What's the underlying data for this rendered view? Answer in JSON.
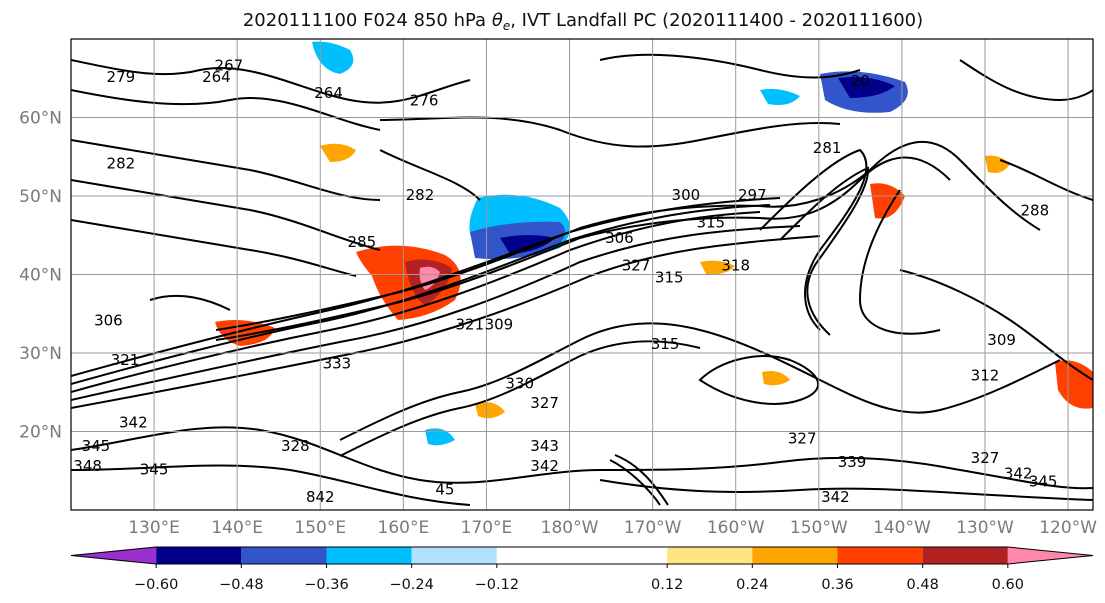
{
  "title_parts": {
    "prefix": "2020111100 F024 850 hPa ",
    "theta": "θ",
    "sub": "e",
    "suffix": ", IVT Landfall PC (2020111400 - 2020111600)"
  },
  "map": {
    "lon_range": [
      120,
      243
    ],
    "lat_range": [
      10,
      70
    ],
    "lat_ticks": [
      {
        "value": 20,
        "label": "20°N"
      },
      {
        "value": 30,
        "label": "30°N"
      },
      {
        "value": 40,
        "label": "40°N"
      },
      {
        "value": 50,
        "label": "50°N"
      },
      {
        "value": 60,
        "label": "60°N"
      }
    ],
    "lon_ticks": [
      {
        "value": 130,
        "label": "130°E"
      },
      {
        "value": 140,
        "label": "140°E"
      },
      {
        "value": 150,
        "label": "150°E"
      },
      {
        "value": 160,
        "label": "160°E"
      },
      {
        "value": 170,
        "label": "170°E"
      },
      {
        "value": 180,
        "label": "180°W"
      },
      {
        "value": 190,
        "label": "170°W"
      },
      {
        "value": 200,
        "label": "160°W"
      },
      {
        "value": 210,
        "label": "150°W"
      },
      {
        "value": 220,
        "label": "140°W"
      },
      {
        "value": 230,
        "label": "130°W"
      },
      {
        "value": 240,
        "label": "120°W"
      }
    ],
    "grid": true,
    "contour_labels": [
      {
        "lon": 126,
        "lat": 64.5,
        "text": "279"
      },
      {
        "lon": 139,
        "lat": 66,
        "text": "267"
      },
      {
        "lon": 137.5,
        "lat": 64.5,
        "text": "264"
      },
      {
        "lon": 151,
        "lat": 62.5,
        "text": "264"
      },
      {
        "lon": 162.5,
        "lat": 61.5,
        "text": "276"
      },
      {
        "lon": 126,
        "lat": 53.5,
        "text": "282"
      },
      {
        "lon": 162,
        "lat": 49.5,
        "text": "282"
      },
      {
        "lon": 155,
        "lat": 43.5,
        "text": "285"
      },
      {
        "lon": 171.5,
        "lat": 33,
        "text": "309"
      },
      {
        "lon": 186,
        "lat": 44,
        "text": "306"
      },
      {
        "lon": 194,
        "lat": 49.5,
        "text": "300"
      },
      {
        "lon": 202,
        "lat": 49.5,
        "text": "297"
      },
      {
        "lon": 197,
        "lat": 46,
        "text": "315"
      },
      {
        "lon": 188,
        "lat": 40.5,
        "text": "327"
      },
      {
        "lon": 192,
        "lat": 39,
        "text": "315"
      },
      {
        "lon": 200,
        "lat": 40.5,
        "text": "318"
      },
      {
        "lon": 211,
        "lat": 55.5,
        "text": "281"
      },
      {
        "lon": 215,
        "lat": 64,
        "text": "20"
      },
      {
        "lon": 236,
        "lat": 47.5,
        "text": "288"
      },
      {
        "lon": 124.5,
        "lat": 33.5,
        "text": "306"
      },
      {
        "lon": 126.5,
        "lat": 28.5,
        "text": "321"
      },
      {
        "lon": 152,
        "lat": 28,
        "text": "333"
      },
      {
        "lon": 168,
        "lat": 33,
        "text": "321"
      },
      {
        "lon": 174,
        "lat": 25.5,
        "text": "330"
      },
      {
        "lon": 177,
        "lat": 23,
        "text": "327"
      },
      {
        "lon": 191.5,
        "lat": 30.5,
        "text": "315"
      },
      {
        "lon": 127.5,
        "lat": 20.5,
        "text": "342"
      },
      {
        "lon": 123,
        "lat": 17.5,
        "text": "345"
      },
      {
        "lon": 122,
        "lat": 15,
        "text": "348"
      },
      {
        "lon": 130,
        "lat": 14.5,
        "text": "345"
      },
      {
        "lon": 147,
        "lat": 17.5,
        "text": "328"
      },
      {
        "lon": 177,
        "lat": 17.5,
        "text": "343"
      },
      {
        "lon": 177,
        "lat": 15,
        "text": "342"
      },
      {
        "lon": 208,
        "lat": 18.5,
        "text": "327"
      },
      {
        "lon": 214,
        "lat": 15.5,
        "text": "339"
      },
      {
        "lon": 230,
        "lat": 16,
        "text": "327"
      },
      {
        "lon": 234,
        "lat": 14,
        "text": "342"
      },
      {
        "lon": 237,
        "lat": 13,
        "text": "345"
      },
      {
        "lon": 232,
        "lat": 31,
        "text": "309"
      },
      {
        "lon": 230,
        "lat": 26.5,
        "text": "312"
      },
      {
        "lon": 212,
        "lat": 11,
        "text": "342"
      },
      {
        "lon": 150,
        "lat": 11,
        "text": "842"
      },
      {
        "lon": 165,
        "lat": 12,
        "text": "45"
      }
    ]
  },
  "colorbar": {
    "levels": [
      -0.72,
      -0.6,
      -0.48,
      -0.36,
      -0.24,
      -0.12,
      0.12,
      0.24,
      0.36,
      0.48,
      0.6,
      0.72
    ],
    "colors": [
      "#9b30d0",
      "#00008b",
      "#3355cc",
      "#00bfff",
      "#b0e2ff",
      "#ffffff",
      "#ffe680",
      "#ffa500",
      "#ff4000",
      "#b22222",
      "#ff88aa"
    ],
    "under_color": "#9b30d0",
    "over_color": "#ff88aa",
    "tick_labels": [
      "−0.60",
      "−0.48",
      "−0.36",
      "−0.24",
      "−0.12",
      "0.12",
      "0.24",
      "0.36",
      "0.48",
      "0.60"
    ]
  }
}
